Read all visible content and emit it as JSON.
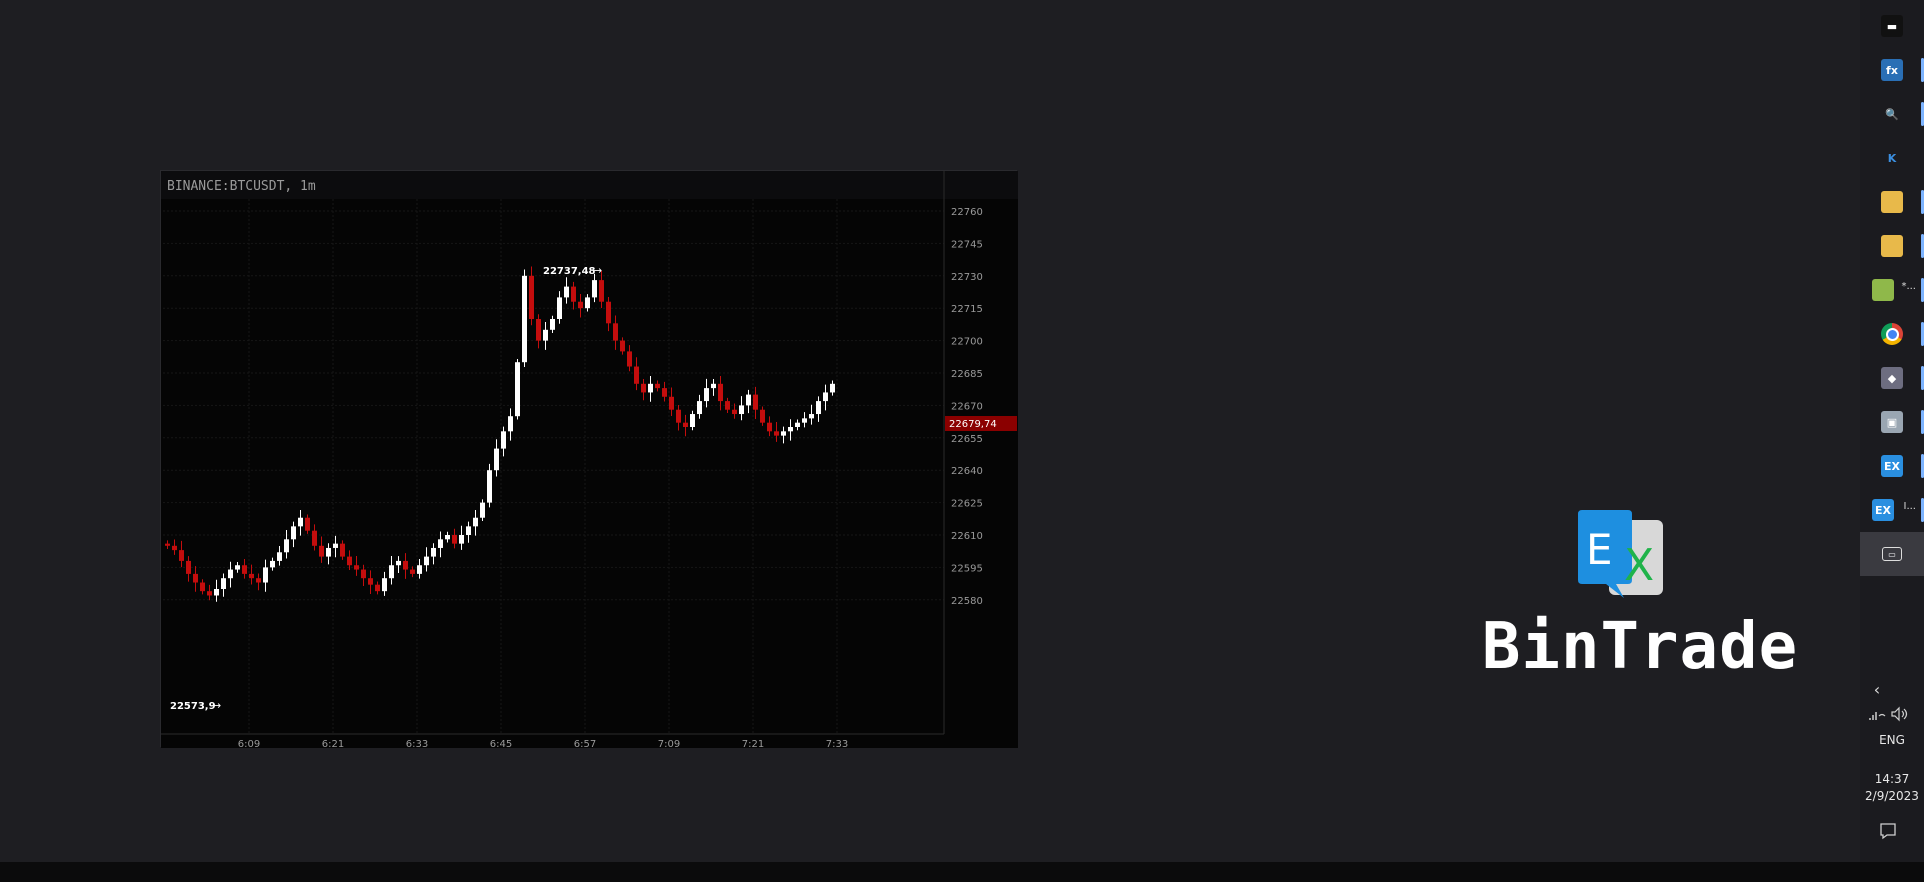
{
  "chart": {
    "title": "BINANCE:BTCUSDT, 1m",
    "max_label": "22737,48",
    "min_label": "22573,9",
    "last_price": "22679,74",
    "colors": {
      "up": "#ffffff",
      "down": "#c40d0d",
      "last_price_bg": "#8b0000",
      "background": "#050505"
    }
  },
  "chart_data": {
    "type": "candlestick",
    "symbol": "BINANCE:BTCUSDT",
    "interval": "1m",
    "ylim": [
      22570,
      22765
    ],
    "y_ticks": [
      "22760",
      "22745",
      "22730",
      "22715",
      "22700",
      "22685",
      "22670",
      "22655",
      "22640",
      "22625",
      "22610",
      "22595",
      "22580"
    ],
    "x_ticks": [
      "6:09",
      "6:21",
      "6:33",
      "6:45",
      "6:57",
      "7:09",
      "7:21",
      "7:33"
    ],
    "grid": true,
    "high": 22737.48,
    "low": 22573.9,
    "last": 22679.74,
    "closes": [
      22605,
      22603,
      22598,
      22592,
      22588,
      22584,
      22582,
      22585,
      22590,
      22594,
      22596,
      22592,
      22590,
      22588,
      22595,
      22598,
      22602,
      22608,
      22614,
      22618,
      22612,
      22605,
      22600,
      22604,
      22606,
      22600,
      22596,
      22594,
      22590,
      22587,
      22584,
      22590,
      22596,
      22598,
      22594,
      22592,
      22596,
      22600,
      22604,
      22608,
      22610,
      22606,
      22610,
      22614,
      22618,
      22625,
      22640,
      22650,
      22658,
      22665,
      22690,
      22730,
      22710,
      22700,
      22705,
      22710,
      22720,
      22725,
      22718,
      22715,
      22720,
      22728,
      22718,
      22708,
      22700,
      22695,
      22688,
      22680,
      22676,
      22680,
      22678,
      22674,
      22668,
      22662,
      22660,
      22666,
      22672,
      22678,
      22680,
      22672,
      22668,
      22666,
      22670,
      22675,
      22668,
      22662,
      22658,
      22656,
      22658,
      22660,
      22662,
      22664,
      22666,
      22672,
      22676,
      22680
    ]
  },
  "taskbar": {
    "items": [
      {
        "icon": "terminal-icon",
        "glyph": "▬",
        "bg": "#111111",
        "indicator": false
      },
      {
        "icon": "fx-function-icon",
        "glyph": "fx",
        "bg": "#2a6fb5",
        "indicator": true
      },
      {
        "icon": "magnifier-icon",
        "glyph": "🔍",
        "bg": "transparent",
        "indicator": true
      },
      {
        "icon": "k-app-icon",
        "glyph": "K",
        "bg": "transparent",
        "indicator": false
      },
      {
        "icon": "folder-icon",
        "glyph": "",
        "bg": "#e8b94a",
        "indicator": true
      },
      {
        "icon": "folder-icon",
        "glyph": "",
        "bg": "#e8b94a",
        "indicator": true
      },
      {
        "icon": "notepad-icon",
        "glyph": "",
        "bg": "#8fb84a",
        "indicator": true,
        "extra": "*..."
      },
      {
        "icon": "chrome-icon",
        "glyph": "",
        "bg": "chrome",
        "indicator": true
      },
      {
        "icon": "visual-studio-icon",
        "glyph": "◆",
        "bg": "#6d6d80",
        "indicator": true
      },
      {
        "icon": "remote-desktop-icon",
        "glyph": "▣",
        "bg": "#9aa6b2",
        "indicator": true
      },
      {
        "icon": "ex-app-icon",
        "glyph": "EX",
        "bg": "#2a8fe0",
        "indicator": true
      },
      {
        "icon": "ex-app-icon",
        "glyph": "EX",
        "bg": "#2a8fe0",
        "indicator": true,
        "extra": "I..."
      },
      {
        "icon": "desktop-icon",
        "glyph": "▭",
        "bg": "transparent",
        "indicator": false,
        "active": true
      }
    ],
    "language": "ENG",
    "time": "14:37",
    "date": "2/9/2023"
  },
  "brand": {
    "logo_letters": "EX",
    "name": "BinTrade"
  }
}
